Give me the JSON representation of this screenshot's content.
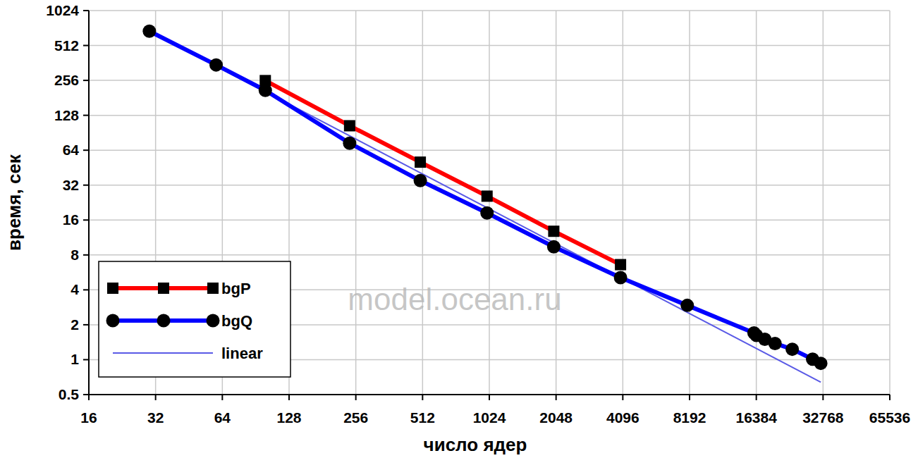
{
  "chart_data": {
    "type": "line",
    "x_label": "число ядер",
    "y_label": "время, сек",
    "annotations": [
      "model.ocean.ru"
    ],
    "log": true,
    "grid": true,
    "legend": "lower left",
    "xlim": [
      16,
      65536
    ],
    "xticks": [
      16,
      32,
      64,
      128,
      256,
      512,
      1024,
      2048,
      4096,
      8192,
      16384,
      32768,
      65536
    ],
    "ylim": [
      0.5,
      1024
    ],
    "yticks": [
      0.5,
      1,
      2,
      4,
      8,
      16,
      32,
      64,
      128,
      256,
      512,
      1024
    ],
    "series": [
      {
        "name": "bgP",
        "color": "#ff0000",
        "marker": "square",
        "line_style": "solid",
        "x": [
          100,
          240,
          500,
          1000,
          2000,
          4000
        ],
        "values": [
          255,
          104,
          50.5,
          25.7,
          12.8,
          6.6
        ]
      },
      {
        "name": "bgQ",
        "color": "#0000ff",
        "marker": "circle",
        "line_style": "solid",
        "x": [
          30,
          60,
          100,
          240,
          500,
          1000,
          2000,
          4000,
          8000,
          16000,
          16400,
          17900,
          19900,
          23800,
          29400,
          32000
        ],
        "values": [
          680,
          348,
          210,
          73.6,
          35,
          18.4,
          9.4,
          5.1,
          2.94,
          1.7,
          1.62,
          1.5,
          1.38,
          1.23,
          1.01,
          0.93
        ]
      },
      {
        "name": "linear",
        "color": "#5a5ae6",
        "marker": "none",
        "line_style": "solid",
        "x": [
          30,
          32000
        ],
        "values": [
          680,
          0.64
        ]
      }
    ]
  }
}
